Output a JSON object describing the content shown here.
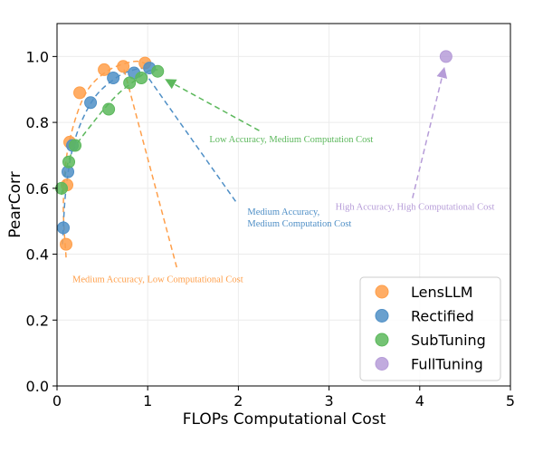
{
  "chart_data": {
    "type": "scatter",
    "title": "",
    "xlabel": "FLOPs Computational Cost",
    "ylabel": "PearCorr",
    "xlim": [
      0,
      5
    ],
    "ylim": [
      0,
      1.1
    ],
    "xticks": [
      "0",
      "1",
      "2",
      "3",
      "4",
      "5"
    ],
    "yticks": [
      "0.0",
      "0.2",
      "0.4",
      "0.6",
      "0.8",
      "1.0"
    ],
    "xtick_values": [
      0,
      1,
      2,
      3,
      4,
      5
    ],
    "ytick_values": [
      0,
      0.2,
      0.4,
      0.6,
      0.8,
      1.0
    ],
    "grid": true,
    "legend_position": "bottom-right",
    "series": [
      {
        "name": "LensLLM",
        "color": "#ff9f4a",
        "points": [
          {
            "x": 0.1,
            "y": 0.43
          },
          {
            "x": 0.11,
            "y": 0.61
          },
          {
            "x": 0.14,
            "y": 0.74
          },
          {
            "x": 0.25,
            "y": 0.89
          },
          {
            "x": 0.52,
            "y": 0.96
          },
          {
            "x": 0.73,
            "y": 0.97
          },
          {
            "x": 0.97,
            "y": 0.98
          }
        ],
        "curve": [
          {
            "x": 0.1,
            "y": 0.39
          },
          {
            "x": 0.07,
            "y": 0.55
          },
          {
            "x": 0.12,
            "y": 0.72
          },
          {
            "x": 0.3,
            "y": 0.88
          },
          {
            "x": 0.55,
            "y": 0.955
          },
          {
            "x": 0.85,
            "y": 0.985
          },
          {
            "x": 1.0,
            "y": 0.975
          }
        ]
      },
      {
        "name": "Rectified",
        "color": "#4f8fc6",
        "points": [
          {
            "x": 0.07,
            "y": 0.48
          },
          {
            "x": 0.12,
            "y": 0.65
          },
          {
            "x": 0.17,
            "y": 0.73
          },
          {
            "x": 0.37,
            "y": 0.86
          },
          {
            "x": 0.62,
            "y": 0.935
          },
          {
            "x": 0.85,
            "y": 0.95
          },
          {
            "x": 1.02,
            "y": 0.965
          }
        ],
        "curve": [
          {
            "x": 0.06,
            "y": 0.43
          },
          {
            "x": 0.1,
            "y": 0.6
          },
          {
            "x": 0.2,
            "y": 0.75
          },
          {
            "x": 0.4,
            "y": 0.87
          },
          {
            "x": 0.65,
            "y": 0.935
          },
          {
            "x": 0.85,
            "y": 0.96
          },
          {
            "x": 1.0,
            "y": 0.965
          }
        ]
      },
      {
        "name": "SubTuning",
        "color": "#5cb85c",
        "points": [
          {
            "x": 0.05,
            "y": 0.6
          },
          {
            "x": 0.13,
            "y": 0.68
          },
          {
            "x": 0.2,
            "y": 0.73
          },
          {
            "x": 0.57,
            "y": 0.84
          },
          {
            "x": 0.8,
            "y": 0.92
          },
          {
            "x": 0.93,
            "y": 0.935
          },
          {
            "x": 1.11,
            "y": 0.955
          }
        ],
        "curve": [
          {
            "x": 0.05,
            "y": 0.58
          },
          {
            "x": 0.15,
            "y": 0.7
          },
          {
            "x": 0.4,
            "y": 0.8
          },
          {
            "x": 0.65,
            "y": 0.88
          },
          {
            "x": 0.85,
            "y": 0.925
          },
          {
            "x": 1.0,
            "y": 0.955
          },
          {
            "x": 1.11,
            "y": 0.96
          }
        ]
      },
      {
        "name": "FullTuning",
        "color": "#b69cd8",
        "points": [
          {
            "x": 4.29,
            "y": 1.0
          }
        ],
        "curve": []
      }
    ],
    "annotations": [
      {
        "text_lines": [
          "Low Accuracy, Medium Computation Cost"
        ],
        "color": "#5cb85c",
        "arrow_from": {
          "x": 2.23,
          "y": 0.775
        },
        "arrow_to": {
          "x": 1.2,
          "y": 0.93
        },
        "text_anchor": {
          "x": 1.68,
          "y": 0.74
        }
      },
      {
        "text_lines": [
          "Medium Accuracy,",
          "Medium Computation Cost"
        ],
        "color": "#4f8fc6",
        "trend_from": {
          "x": 1.97,
          "y": 0.56
        },
        "trend_to": {
          "x": 0.97,
          "y": 0.95
        },
        "text_anchor": {
          "x": 2.1,
          "y": 0.52
        }
      },
      {
        "text_lines": [
          "Medium Accuracy, Low Computational Cost"
        ],
        "color": "#ff9f4a",
        "trend_from": {
          "x": 1.32,
          "y": 0.36
        },
        "trend_to": {
          "x": 0.73,
          "y": 0.97
        },
        "text_anchor": {
          "x": 0.17,
          "y": 0.315
        }
      },
      {
        "text_lines": [
          "High Accuracy, High Computational Cost"
        ],
        "color": "#b69cd8",
        "arrow_from": {
          "x": 3.92,
          "y": 0.57
        },
        "arrow_to": {
          "x": 4.27,
          "y": 0.965
        },
        "text_anchor": {
          "x": 3.07,
          "y": 0.535
        }
      }
    ]
  }
}
